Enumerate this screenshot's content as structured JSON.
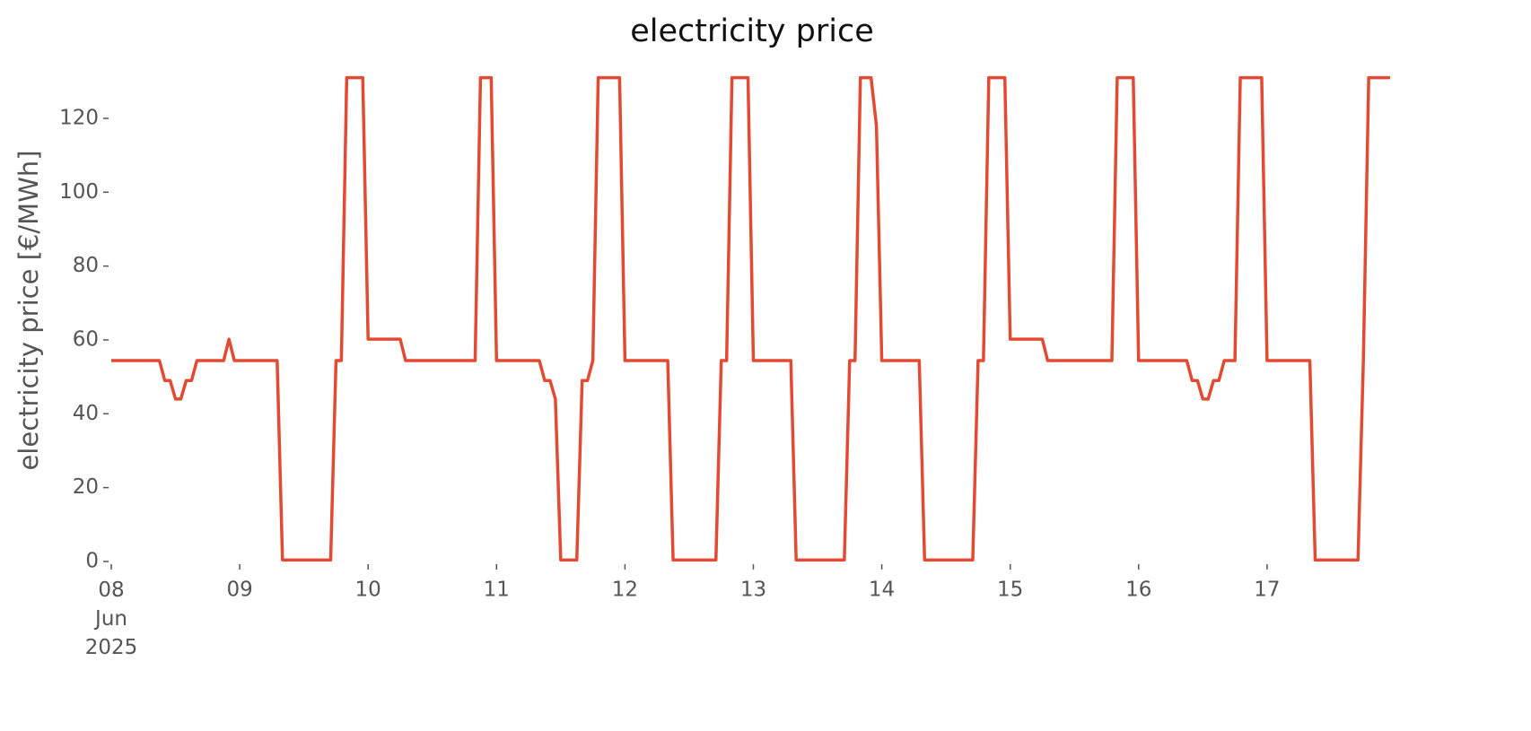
{
  "chart_data": {
    "type": "line",
    "title": "electricity price",
    "y_label": "electricity price [€/MWh]",
    "xlim": [
      "2025-06-08 00:00",
      "2025-06-17 23:00"
    ],
    "xticks": [
      {
        "value": "2025-06-08 00:00",
        "label": "08\nJun\n2025"
      },
      {
        "value": "2025-06-09 00:00",
        "label": "09"
      },
      {
        "value": "2025-06-10 00:00",
        "label": "10"
      },
      {
        "value": "2025-06-11 00:00",
        "label": "11"
      },
      {
        "value": "2025-06-12 00:00",
        "label": "12"
      },
      {
        "value": "2025-06-13 00:00",
        "label": "13"
      },
      {
        "value": "2025-06-14 00:00",
        "label": "14"
      },
      {
        "value": "2025-06-15 00:00",
        "label": "15"
      },
      {
        "value": "2025-06-16 00:00",
        "label": "16"
      },
      {
        "value": "2025-06-17 00:00",
        "label": "17"
      }
    ],
    "ylim": [
      0,
      136.6
    ],
    "yticks": [
      0,
      20,
      40,
      60,
      80,
      100,
      120
    ],
    "grid": false,
    "series": [
      {
        "name": "electricity price",
        "color": "#e24a33",
        "x": [
          "2025-06-08 00:00",
          "2025-06-08 01:00",
          "2025-06-08 02:00",
          "2025-06-08 03:00",
          "2025-06-08 04:00",
          "2025-06-08 05:00",
          "2025-06-08 06:00",
          "2025-06-08 07:00",
          "2025-06-08 08:00",
          "2025-06-08 09:00",
          "2025-06-08 10:00",
          "2025-06-08 11:00",
          "2025-06-08 12:00",
          "2025-06-08 13:00",
          "2025-06-08 14:00",
          "2025-06-08 15:00",
          "2025-06-08 16:00",
          "2025-06-08 17:00",
          "2025-06-08 18:00",
          "2025-06-08 19:00",
          "2025-06-08 20:00",
          "2025-06-08 21:00",
          "2025-06-08 22:00",
          "2025-06-08 23:00",
          "2025-06-09 00:00",
          "2025-06-09 01:00",
          "2025-06-09 02:00",
          "2025-06-09 03:00",
          "2025-06-09 04:00",
          "2025-06-09 05:00",
          "2025-06-09 06:00",
          "2025-06-09 07:00",
          "2025-06-09 08:00",
          "2025-06-09 09:00",
          "2025-06-09 10:00",
          "2025-06-09 11:00",
          "2025-06-09 12:00",
          "2025-06-09 13:00",
          "2025-06-09 14:00",
          "2025-06-09 15:00",
          "2025-06-09 16:00",
          "2025-06-09 17:00",
          "2025-06-09 18:00",
          "2025-06-09 19:00",
          "2025-06-09 20:00",
          "2025-06-09 21:00",
          "2025-06-09 22:00",
          "2025-06-09 23:00",
          "2025-06-10 00:00",
          "2025-06-10 01:00",
          "2025-06-10 02:00",
          "2025-06-10 03:00",
          "2025-06-10 04:00",
          "2025-06-10 05:00",
          "2025-06-10 06:00",
          "2025-06-10 07:00",
          "2025-06-10 08:00",
          "2025-06-10 09:00",
          "2025-06-10 10:00",
          "2025-06-10 11:00",
          "2025-06-10 12:00",
          "2025-06-10 13:00",
          "2025-06-10 14:00",
          "2025-06-10 15:00",
          "2025-06-10 16:00",
          "2025-06-10 17:00",
          "2025-06-10 18:00",
          "2025-06-10 19:00",
          "2025-06-10 20:00",
          "2025-06-10 21:00",
          "2025-06-10 22:00",
          "2025-06-10 23:00",
          "2025-06-11 00:00",
          "2025-06-11 01:00",
          "2025-06-11 02:00",
          "2025-06-11 03:00",
          "2025-06-11 04:00",
          "2025-06-11 05:00",
          "2025-06-11 06:00",
          "2025-06-11 07:00",
          "2025-06-11 08:00",
          "2025-06-11 09:00",
          "2025-06-11 10:00",
          "2025-06-11 11:00",
          "2025-06-11 12:00",
          "2025-06-11 13:00",
          "2025-06-11 14:00",
          "2025-06-11 15:00",
          "2025-06-11 16:00",
          "2025-06-11 17:00",
          "2025-06-11 18:00",
          "2025-06-11 19:00",
          "2025-06-11 20:00",
          "2025-06-11 21:00",
          "2025-06-11 22:00",
          "2025-06-11 23:00",
          "2025-06-12 00:00",
          "2025-06-12 01:00",
          "2025-06-12 02:00",
          "2025-06-12 03:00",
          "2025-06-12 04:00",
          "2025-06-12 05:00",
          "2025-06-12 06:00",
          "2025-06-12 07:00",
          "2025-06-12 08:00",
          "2025-06-12 09:00",
          "2025-06-12 10:00",
          "2025-06-12 11:00",
          "2025-06-12 12:00",
          "2025-06-12 13:00",
          "2025-06-12 14:00",
          "2025-06-12 15:00",
          "2025-06-12 16:00",
          "2025-06-12 17:00",
          "2025-06-12 18:00",
          "2025-06-12 19:00",
          "2025-06-12 20:00",
          "2025-06-12 21:00",
          "2025-06-12 22:00",
          "2025-06-12 23:00",
          "2025-06-13 00:00",
          "2025-06-13 01:00",
          "2025-06-13 02:00",
          "2025-06-13 03:00",
          "2025-06-13 04:00",
          "2025-06-13 05:00",
          "2025-06-13 06:00",
          "2025-06-13 07:00",
          "2025-06-13 08:00",
          "2025-06-13 09:00",
          "2025-06-13 10:00",
          "2025-06-13 11:00",
          "2025-06-13 12:00",
          "2025-06-13 13:00",
          "2025-06-13 14:00",
          "2025-06-13 15:00",
          "2025-06-13 16:00",
          "2025-06-13 17:00",
          "2025-06-13 18:00",
          "2025-06-13 19:00",
          "2025-06-13 20:00",
          "2025-06-13 21:00",
          "2025-06-13 22:00",
          "2025-06-13 23:00",
          "2025-06-14 00:00",
          "2025-06-14 01:00",
          "2025-06-14 02:00",
          "2025-06-14 03:00",
          "2025-06-14 04:00",
          "2025-06-14 05:00",
          "2025-06-14 06:00",
          "2025-06-14 07:00",
          "2025-06-14 08:00",
          "2025-06-14 09:00",
          "2025-06-14 10:00",
          "2025-06-14 11:00",
          "2025-06-14 12:00",
          "2025-06-14 13:00",
          "2025-06-14 14:00",
          "2025-06-14 15:00",
          "2025-06-14 16:00",
          "2025-06-14 17:00",
          "2025-06-14 18:00",
          "2025-06-14 19:00",
          "2025-06-14 20:00",
          "2025-06-14 21:00",
          "2025-06-14 22:00",
          "2025-06-14 23:00",
          "2025-06-15 00:00",
          "2025-06-15 01:00",
          "2025-06-15 02:00",
          "2025-06-15 03:00",
          "2025-06-15 04:00",
          "2025-06-15 05:00",
          "2025-06-15 06:00",
          "2025-06-15 07:00",
          "2025-06-15 08:00",
          "2025-06-15 09:00",
          "2025-06-15 10:00",
          "2025-06-15 11:00",
          "2025-06-15 12:00",
          "2025-06-15 13:00",
          "2025-06-15 14:00",
          "2025-06-15 15:00",
          "2025-06-15 16:00",
          "2025-06-15 17:00",
          "2025-06-15 18:00",
          "2025-06-15 19:00",
          "2025-06-15 20:00",
          "2025-06-15 21:00",
          "2025-06-15 22:00",
          "2025-06-15 23:00",
          "2025-06-16 00:00",
          "2025-06-16 01:00",
          "2025-06-16 02:00",
          "2025-06-16 03:00",
          "2025-06-16 04:00",
          "2025-06-16 05:00",
          "2025-06-16 06:00",
          "2025-06-16 07:00",
          "2025-06-16 08:00",
          "2025-06-16 09:00",
          "2025-06-16 10:00",
          "2025-06-16 11:00",
          "2025-06-16 12:00",
          "2025-06-16 13:00",
          "2025-06-16 14:00",
          "2025-06-16 15:00",
          "2025-06-16 16:00",
          "2025-06-16 17:00",
          "2025-06-16 18:00",
          "2025-06-16 19:00",
          "2025-06-16 20:00",
          "2025-06-16 21:00",
          "2025-06-16 22:00",
          "2025-06-16 23:00",
          "2025-06-17 00:00",
          "2025-06-17 01:00",
          "2025-06-17 02:00",
          "2025-06-17 03:00",
          "2025-06-17 04:00",
          "2025-06-17 05:00",
          "2025-06-17 06:00",
          "2025-06-17 07:00",
          "2025-06-17 08:00",
          "2025-06-17 09:00",
          "2025-06-17 10:00",
          "2025-06-17 11:00",
          "2025-06-17 12:00",
          "2025-06-17 13:00",
          "2025-06-17 14:00",
          "2025-06-17 15:00",
          "2025-06-17 16:00",
          "2025-06-17 17:00",
          "2025-06-17 18:00",
          "2025-06-17 19:00",
          "2025-06-17 20:00",
          "2025-06-17 21:00",
          "2025-06-17 22:00",
          "2025-06-17 23:00"
        ],
        "values": [
          54.4,
          54.4,
          54.4,
          54.4,
          54.4,
          54.4,
          54.4,
          54.4,
          54.4,
          54.4,
          49,
          49,
          44,
          44,
          49,
          49,
          54.4,
          54.4,
          54.4,
          54.4,
          54.4,
          54.4,
          60.2,
          54.4,
          54.4,
          54.4,
          54.4,
          54.4,
          54.4,
          54.4,
          54.4,
          54.4,
          0.4,
          0.4,
          0.4,
          0.4,
          0.4,
          0.4,
          0.4,
          0.4,
          0.4,
          0.4,
          54.4,
          54.4,
          131,
          131,
          131,
          131,
          60.2,
          60.2,
          60.2,
          60.2,
          60.2,
          60.2,
          60.2,
          54.4,
          54.4,
          54.4,
          54.4,
          54.4,
          54.4,
          54.4,
          54.4,
          54.4,
          54.4,
          54.4,
          54.4,
          54.4,
          54.4,
          131,
          131,
          131,
          54.4,
          54.4,
          54.4,
          54.4,
          54.4,
          54.4,
          54.4,
          54.4,
          54.4,
          49,
          49,
          44,
          0.4,
          0.4,
          0.4,
          0.4,
          49,
          49,
          54.4,
          131,
          131,
          131,
          131,
          131,
          54.4,
          54.4,
          54.4,
          54.4,
          54.4,
          54.4,
          54.4,
          54.4,
          54.4,
          0.4,
          0.4,
          0.4,
          0.4,
          0.4,
          0.4,
          0.4,
          0.4,
          0.4,
          54.4,
          54.4,
          131,
          131,
          131,
          131,
          54.4,
          54.4,
          54.4,
          54.4,
          54.4,
          54.4,
          54.4,
          54.4,
          0.4,
          0.4,
          0.4,
          0.4,
          0.4,
          0.4,
          0.4,
          0.4,
          0.4,
          0.4,
          54.4,
          54.4,
          131,
          131,
          131,
          118,
          54.4,
          54.4,
          54.4,
          54.4,
          54.4,
          54.4,
          54.4,
          54.4,
          0.4,
          0.4,
          0.4,
          0.4,
          0.4,
          0.4,
          0.4,
          0.4,
          0.4,
          0.4,
          54.4,
          54.4,
          131,
          131,
          131,
          131,
          60.2,
          60.2,
          60.2,
          60.2,
          60.2,
          60.2,
          60.2,
          54.4,
          54.4,
          54.4,
          54.4,
          54.4,
          54.4,
          54.4,
          54.4,
          54.4,
          54.4,
          54.4,
          54.4,
          54.4,
          131,
          131,
          131,
          131,
          54.4,
          54.4,
          54.4,
          54.4,
          54.4,
          54.4,
          54.4,
          54.4,
          54.4,
          54.4,
          49,
          49,
          44,
          44,
          49,
          49,
          54.4,
          54.4,
          54.4,
          131,
          131,
          131,
          131,
          131,
          54.4,
          54.4,
          54.4,
          54.4,
          54.4,
          54.4,
          54.4,
          54.4,
          54.4,
          0.4,
          0.4,
          0.4,
          0.4,
          0.4,
          0.4,
          0.4,
          0.4,
          0.4,
          54.4,
          131,
          131,
          131,
          131,
          131
        ]
      }
    ]
  }
}
